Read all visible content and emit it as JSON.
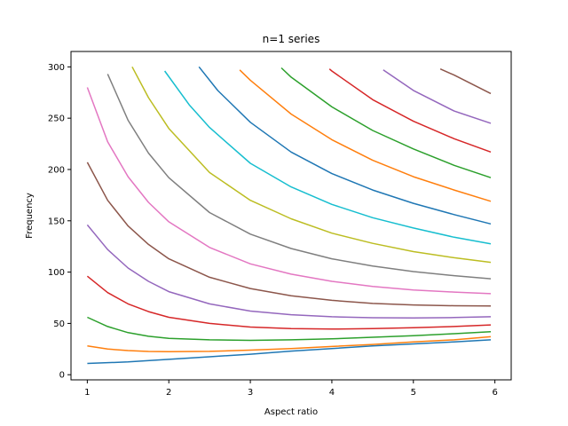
{
  "chart_data": {
    "type": "line",
    "title": "n=1 series",
    "xlabel": "Aspect ratio",
    "ylabel": "Frequency",
    "xlim": [
      0.8,
      6.2
    ],
    "ylim": [
      -5,
      315
    ],
    "xticks": [
      1,
      2,
      3,
      4,
      5,
      6
    ],
    "yticks": [
      0,
      50,
      100,
      150,
      200,
      250,
      300
    ],
    "grid": false,
    "legend": "none",
    "series": [
      {
        "color": "#1f77b4",
        "points": [
          [
            1.0,
            11
          ],
          [
            1.5,
            12.5
          ],
          [
            2.0,
            15
          ],
          [
            2.5,
            17.5
          ],
          [
            3.0,
            20
          ],
          [
            3.5,
            23
          ],
          [
            4.0,
            25.5
          ],
          [
            4.5,
            28
          ],
          [
            5.0,
            30
          ],
          [
            5.5,
            32
          ],
          [
            5.95,
            34
          ]
        ]
      },
      {
        "color": "#ff7f0e",
        "points": [
          [
            1.0,
            28
          ],
          [
            1.25,
            25
          ],
          [
            1.5,
            23.5
          ],
          [
            1.75,
            22.7
          ],
          [
            2.0,
            22.5
          ],
          [
            2.5,
            22.8
          ],
          [
            3.0,
            24
          ],
          [
            3.5,
            25.5
          ],
          [
            4.0,
            27.5
          ],
          [
            4.5,
            29.5
          ],
          [
            5.0,
            32
          ],
          [
            5.5,
            34
          ],
          [
            5.95,
            37
          ]
        ]
      },
      {
        "color": "#2ca02c",
        "points": [
          [
            1.0,
            56
          ],
          [
            1.25,
            47
          ],
          [
            1.5,
            41
          ],
          [
            1.75,
            37.5
          ],
          [
            2.0,
            35.5
          ],
          [
            2.5,
            34
          ],
          [
            3.0,
            33.5
          ],
          [
            3.5,
            34
          ],
          [
            4.0,
            35
          ],
          [
            4.5,
            36.5
          ],
          [
            5.0,
            38
          ],
          [
            5.5,
            40
          ],
          [
            5.95,
            42
          ]
        ]
      },
      {
        "color": "#d62728",
        "points": [
          [
            1.0,
            96
          ],
          [
            1.25,
            80
          ],
          [
            1.5,
            69
          ],
          [
            1.75,
            61.5
          ],
          [
            2.0,
            56
          ],
          [
            2.5,
            50
          ],
          [
            3.0,
            46.5
          ],
          [
            3.5,
            45
          ],
          [
            4.0,
            44.5
          ],
          [
            4.5,
            45
          ],
          [
            5.0,
            45.8
          ],
          [
            5.5,
            47
          ],
          [
            5.95,
            48.5
          ]
        ]
      },
      {
        "color": "#9467bd",
        "points": [
          [
            1.0,
            146
          ],
          [
            1.25,
            122
          ],
          [
            1.5,
            104
          ],
          [
            1.75,
            91
          ],
          [
            2.0,
            81
          ],
          [
            2.5,
            69
          ],
          [
            3.0,
            62
          ],
          [
            3.5,
            58.5
          ],
          [
            4.0,
            56.5
          ],
          [
            4.5,
            55.5
          ],
          [
            5.0,
            55.3
          ],
          [
            5.5,
            55.7
          ],
          [
            5.95,
            56.5
          ]
        ]
      },
      {
        "color": "#8c564b",
        "points": [
          [
            1.0,
            207
          ],
          [
            1.25,
            170
          ],
          [
            1.5,
            145
          ],
          [
            1.75,
            127
          ],
          [
            2.0,
            113
          ],
          [
            2.5,
            95
          ],
          [
            3.0,
            84
          ],
          [
            3.5,
            77
          ],
          [
            4.0,
            72.5
          ],
          [
            4.5,
            69.5
          ],
          [
            5.0,
            68
          ],
          [
            5.5,
            67.2
          ],
          [
            5.95,
            67
          ]
        ]
      },
      {
        "color": "#e377c2",
        "points": [
          [
            1.0,
            280
          ],
          [
            1.25,
            227
          ],
          [
            1.5,
            193
          ],
          [
            1.75,
            168
          ],
          [
            2.0,
            149
          ],
          [
            2.5,
            124
          ],
          [
            3.0,
            108
          ],
          [
            3.5,
            98
          ],
          [
            4.0,
            91
          ],
          [
            4.5,
            86
          ],
          [
            5.0,
            82.5
          ],
          [
            5.5,
            80.5
          ],
          [
            5.95,
            79
          ]
        ]
      },
      {
        "color": "#7f7f7f",
        "points": [
          [
            1.25,
            293
          ],
          [
            1.5,
            248
          ],
          [
            1.75,
            216
          ],
          [
            2.0,
            192
          ],
          [
            2.5,
            158
          ],
          [
            3.0,
            137
          ],
          [
            3.5,
            123
          ],
          [
            4.0,
            113
          ],
          [
            4.5,
            106
          ],
          [
            5.0,
            100.5
          ],
          [
            5.5,
            96.5
          ],
          [
            5.95,
            93.5
          ]
        ]
      },
      {
        "color": "#bcbd22",
        "points": [
          [
            1.55,
            300
          ],
          [
            1.75,
            270
          ],
          [
            2.0,
            240
          ],
          [
            2.5,
            197
          ],
          [
            3.0,
            170
          ],
          [
            3.5,
            152
          ],
          [
            4.0,
            138
          ],
          [
            4.5,
            128
          ],
          [
            5.0,
            120
          ],
          [
            5.5,
            114
          ],
          [
            5.95,
            109.5
          ]
        ]
      },
      {
        "color": "#17becf",
        "points": [
          [
            1.95,
            296
          ],
          [
            2.25,
            263
          ],
          [
            2.5,
            241
          ],
          [
            3.0,
            206
          ],
          [
            3.5,
            183
          ],
          [
            4.0,
            166
          ],
          [
            4.5,
            153
          ],
          [
            5.0,
            143
          ],
          [
            5.5,
            134
          ],
          [
            5.95,
            127.5
          ]
        ]
      },
      {
        "color": "#1f77b4",
        "points": [
          [
            2.37,
            300
          ],
          [
            2.6,
            277
          ],
          [
            3.0,
            246
          ],
          [
            3.5,
            217
          ],
          [
            4.0,
            196
          ],
          [
            4.5,
            180
          ],
          [
            5.0,
            167
          ],
          [
            5.5,
            156
          ],
          [
            5.95,
            147
          ]
        ]
      },
      {
        "color": "#ff7f0e",
        "points": [
          [
            2.87,
            297
          ],
          [
            3.0,
            287
          ],
          [
            3.5,
            254
          ],
          [
            4.0,
            229
          ],
          [
            4.5,
            209
          ],
          [
            5.0,
            193
          ],
          [
            5.5,
            180
          ],
          [
            5.95,
            169
          ]
        ]
      },
      {
        "color": "#2ca02c",
        "points": [
          [
            3.38,
            299
          ],
          [
            3.5,
            290
          ],
          [
            4.0,
            261
          ],
          [
            4.5,
            238
          ],
          [
            5.0,
            220
          ],
          [
            5.5,
            204
          ],
          [
            5.95,
            192
          ]
        ]
      },
      {
        "color": "#d62728",
        "points": [
          [
            3.97,
            298
          ],
          [
            4.0,
            296
          ],
          [
            4.5,
            268
          ],
          [
            5.0,
            247
          ],
          [
            5.5,
            230
          ],
          [
            5.95,
            217
          ]
        ]
      },
      {
        "color": "#9467bd",
        "points": [
          [
            4.63,
            297
          ],
          [
            5.0,
            277
          ],
          [
            5.5,
            257
          ],
          [
            5.95,
            245
          ]
        ]
      },
      {
        "color": "#8c564b",
        "points": [
          [
            5.33,
            298
          ],
          [
            5.5,
            292
          ],
          [
            5.95,
            274
          ]
        ]
      }
    ]
  }
}
